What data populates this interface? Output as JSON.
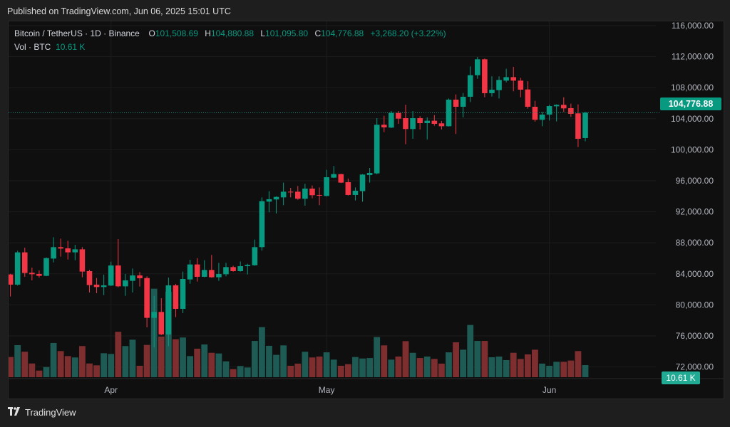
{
  "published": "Published on TradingView.com, Jun 06, 2025 15:01 UTC",
  "legend": {
    "symbol": "Bitcoin / TetherUS · 1D · Binance",
    "o_label": "O",
    "o_value": "101,508.69",
    "h_label": "H",
    "h_value": "104,880.88",
    "l_label": "L",
    "l_value": "101,095.80",
    "c_label": "C",
    "c_value": "104,776.88",
    "change": "+3,268.20 (+3.22%)",
    "vol_label": "Vol · BTC",
    "vol_value": "10.61 K"
  },
  "price_label": "104,776.88",
  "volume_label": "10.61 K",
  "logo": {
    "mark": "TV",
    "text": "TradingView"
  },
  "colors": {
    "up": "#089981",
    "down": "#f23645",
    "vol_up": "#1d5b54",
    "vol_down": "#7f2e2f",
    "background": "#0f0f0f"
  },
  "chart_data": {
    "type": "candlestick",
    "title": "Bitcoin / TetherUS · 1D · Binance",
    "ylim": [
      72000,
      116000
    ],
    "y_ticks": [
      "116,000.00",
      "112,000.00",
      "108,000.00",
      "104,000.00",
      "100,000.00",
      "96,000.00",
      "92,000.00",
      "88,000.00",
      "84,000.00",
      "80,000.00",
      "76,000.00",
      "72,000.00"
    ],
    "y_tick_values": [
      116000,
      112000,
      108000,
      104000,
      100000,
      96000,
      92000,
      88000,
      84000,
      80000,
      76000,
      72000
    ],
    "x_ticks": [
      {
        "label": "Apr",
        "date": "2025-04-01"
      },
      {
        "label": "May",
        "date": "2025-05-01"
      },
      {
        "label": "Jun",
        "date": "2025-06-01"
      }
    ],
    "grid": true,
    "last_price": 104776.88,
    "volume_unit": "K BTC",
    "columns": [
      "date",
      "open",
      "high",
      "low",
      "close",
      "volume"
    ],
    "candles": [
      [
        "2025-03-18",
        83920,
        84000,
        81080,
        82610,
        17.7
      ],
      [
        "2025-03-19",
        82610,
        86980,
        82490,
        86770,
        28.1
      ],
      [
        "2025-03-20",
        86770,
        87380,
        83620,
        84110,
        22.3
      ],
      [
        "2025-03-21",
        84140,
        84810,
        83160,
        83950,
        12.0
      ],
      [
        "2025-03-22",
        83980,
        84440,
        83520,
        83740,
        5.8
      ],
      [
        "2025-03-23",
        83740,
        86120,
        83700,
        86030,
        8.9
      ],
      [
        "2025-03-24",
        85970,
        88720,
        85480,
        87440,
        30.0
      ],
      [
        "2025-03-25",
        87440,
        88540,
        86220,
        87260,
        22.9
      ],
      [
        "2025-03-26",
        87290,
        88260,
        85850,
        86770,
        18.5
      ],
      [
        "2025-03-27",
        86770,
        87740,
        85760,
        87160,
        17.3
      ],
      [
        "2025-03-28",
        87160,
        87440,
        83560,
        84290,
        27.3
      ],
      [
        "2025-03-29",
        84350,
        84530,
        81600,
        82550,
        12.0
      ],
      [
        "2025-03-30",
        82610,
        83460,
        81510,
        82300,
        10.4
      ],
      [
        "2025-03-31",
        82300,
        83890,
        81260,
        82520,
        21.0
      ],
      [
        "2025-04-01",
        82490,
        85570,
        82430,
        85080,
        20.4
      ],
      [
        "2025-04-02",
        85080,
        88480,
        82270,
        82390,
        39.8
      ],
      [
        "2025-04-03",
        82390,
        83980,
        81170,
        83160,
        27.3
      ],
      [
        "2025-04-04",
        83100,
        84690,
        81600,
        83800,
        32.9
      ],
      [
        "2025-04-05",
        83800,
        84230,
        82360,
        83430,
        10.0
      ],
      [
        "2025-04-06",
        83460,
        83680,
        77100,
        78330,
        28.3
      ],
      [
        "2025-04-07",
        78330,
        81170,
        74500,
        79090,
        77.6
      ],
      [
        "2025-04-08",
        79090,
        80860,
        76100,
        76190,
        35.6
      ],
      [
        "2025-04-09",
        76190,
        83520,
        74660,
        82520,
        74.9
      ],
      [
        "2025-04-10",
        82520,
        82700,
        78420,
        79490,
        33.3
      ],
      [
        "2025-04-11",
        79490,
        84290,
        78940,
        83340,
        34.8
      ],
      [
        "2025-04-12",
        83280,
        85820,
        82730,
        85210,
        18.5
      ],
      [
        "2025-04-13",
        85210,
        86030,
        83000,
        83620,
        25.0
      ],
      [
        "2025-04-14",
        83620,
        85760,
        83560,
        84500,
        28.7
      ],
      [
        "2025-04-15",
        84500,
        86430,
        83500,
        83560,
        21.4
      ],
      [
        "2025-04-16",
        83560,
        85420,
        83100,
        83980,
        20.8
      ],
      [
        "2025-04-17",
        83950,
        85420,
        83680,
        84870,
        13.9
      ],
      [
        "2025-04-18",
        84870,
        85050,
        84280,
        84350,
        7.1
      ],
      [
        "2025-04-19",
        84350,
        85600,
        84280,
        84990,
        9.8
      ],
      [
        "2025-04-20",
        84990,
        85300,
        83920,
        85150,
        8.5
      ],
      [
        "2025-04-21",
        85110,
        88420,
        85050,
        87440,
        31.8
      ],
      [
        "2025-04-22",
        87440,
        93860,
        87000,
        93370,
        43.9
      ],
      [
        "2025-04-23",
        93310,
        94660,
        91930,
        93620,
        27.5
      ],
      [
        "2025-04-24",
        93590,
        94000,
        91780,
        93920,
        19.6
      ],
      [
        "2025-04-25",
        93860,
        95760,
        92850,
        94590,
        27.9
      ],
      [
        "2025-04-26",
        94590,
        95080,
        93860,
        94530,
        10.0
      ],
      [
        "2025-04-27",
        94590,
        95330,
        93550,
        93680,
        11.9
      ],
      [
        "2025-04-28",
        93680,
        95600,
        92790,
        94990,
        22.3
      ],
      [
        "2025-04-29",
        94990,
        95390,
        93740,
        94140,
        17.3
      ],
      [
        "2025-04-30",
        94170,
        95140,
        92850,
        94100,
        18.1
      ],
      [
        "2025-05-01",
        94040,
        97410,
        93990,
        96460,
        21.8
      ],
      [
        "2025-05-02",
        96400,
        97900,
        96350,
        96860,
        15.4
      ],
      [
        "2025-05-03",
        96860,
        96900,
        95700,
        95760,
        10.0
      ],
      [
        "2025-05-04",
        95820,
        96280,
        94100,
        94170,
        11.4
      ],
      [
        "2025-05-05",
        94170,
        95140,
        93460,
        94720,
        17.7
      ],
      [
        "2025-05-06",
        94660,
        96850,
        93310,
        96800,
        16.4
      ],
      [
        "2025-05-07",
        96740,
        97650,
        95760,
        97010,
        16.8
      ],
      [
        "2025-05-08",
        96950,
        104070,
        96830,
        103220,
        35.2
      ],
      [
        "2025-05-09",
        103220,
        104380,
        102270,
        102880,
        27.9
      ],
      [
        "2025-05-10",
        102850,
        104990,
        102800,
        104750,
        15.4
      ],
      [
        "2025-05-11",
        104750,
        104990,
        103340,
        104010,
        18.1
      ],
      [
        "2025-05-12",
        104070,
        105790,
        100710,
        102670,
        31.6
      ],
      [
        "2025-05-13",
        102670,
        104990,
        101410,
        104070,
        21.4
      ],
      [
        "2025-05-14",
        104070,
        104320,
        102610,
        103430,
        16.8
      ],
      [
        "2025-05-15",
        103430,
        104170,
        101320,
        103740,
        18.1
      ],
      [
        "2025-05-16",
        103740,
        104470,
        103100,
        103340,
        16.0
      ],
      [
        "2025-05-17",
        103400,
        103710,
        102610,
        103030,
        11.9
      ],
      [
        "2025-05-18",
        103030,
        106610,
        102990,
        106460,
        21.8
      ],
      [
        "2025-05-19",
        106460,
        107130,
        102030,
        105540,
        30.6
      ],
      [
        "2025-05-20",
        105540,
        107320,
        104170,
        106830,
        24.1
      ],
      [
        "2025-05-21",
        106830,
        110740,
        106150,
        109610,
        45.8
      ],
      [
        "2025-05-22",
        109610,
        111960,
        109150,
        111660,
        31.8
      ],
      [
        "2025-05-23",
        111660,
        111760,
        106770,
        107290,
        31.8
      ],
      [
        "2025-05-24",
        107290,
        109460,
        106860,
        107740,
        17.5
      ],
      [
        "2025-05-25",
        107680,
        109460,
        106610,
        109000,
        18.1
      ],
      [
        "2025-05-26",
        108910,
        110440,
        108690,
        109360,
        15.0
      ],
      [
        "2025-05-27",
        109360,
        110680,
        107530,
        108910,
        21.4
      ],
      [
        "2025-05-28",
        108910,
        109270,
        106770,
        107740,
        16.0
      ],
      [
        "2025-05-29",
        107770,
        108840,
        105300,
        105540,
        20.0
      ],
      [
        "2025-05-30",
        105540,
        106310,
        103620,
        103860,
        24.1
      ],
      [
        "2025-05-31",
        103860,
        104870,
        103030,
        104530,
        11.9
      ],
      [
        "2025-06-01",
        104530,
        105790,
        103770,
        105630,
        10.0
      ],
      [
        "2025-06-02",
        105600,
        105850,
        103650,
        105790,
        13.5
      ],
      [
        "2025-06-03",
        105790,
        106770,
        104870,
        105330,
        13.5
      ],
      [
        "2025-06-04",
        105360,
        105940,
        104230,
        104630,
        14.6
      ],
      [
        "2025-06-05",
        104690,
        105850,
        100340,
        101410,
        22.9
      ],
      [
        "2025-06-06",
        101508.69,
        104880.88,
        101095.8,
        104776.88,
        10.61
      ]
    ]
  }
}
